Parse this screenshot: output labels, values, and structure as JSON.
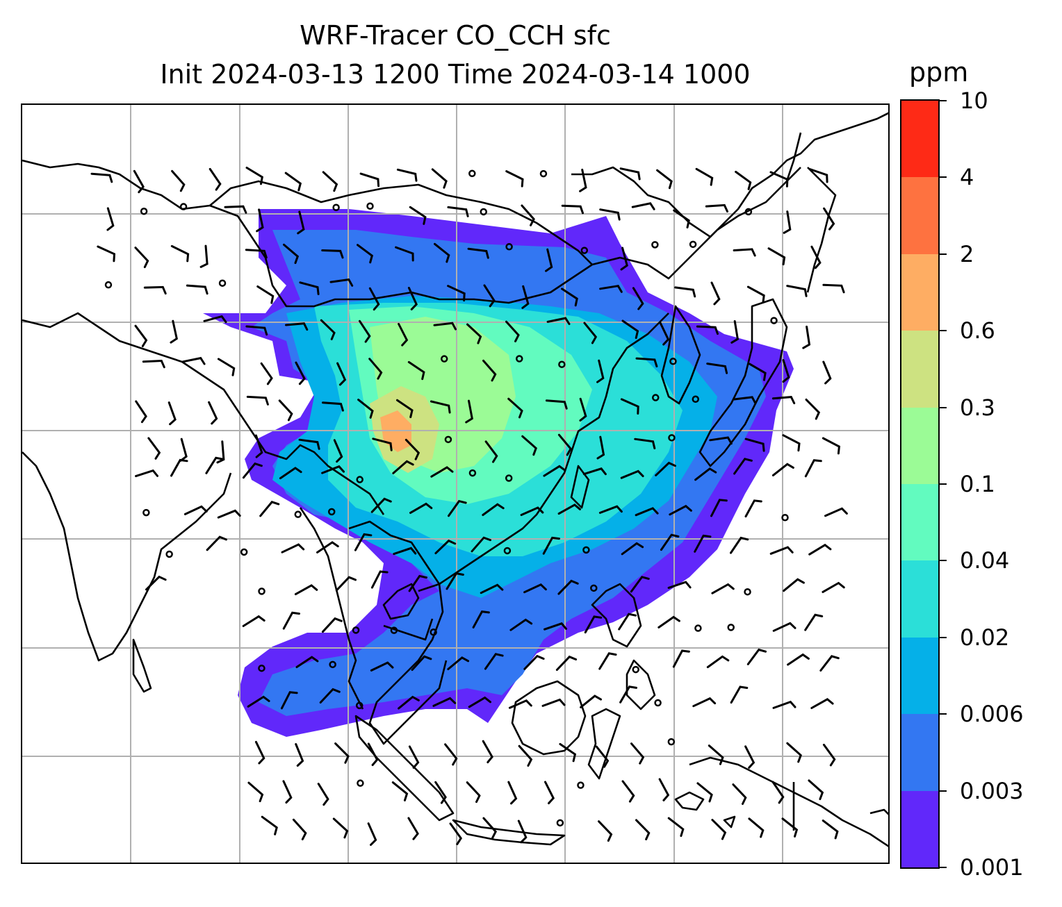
{
  "title": {
    "line1": "WRF-Tracer CO_CCH sfc",
    "line2": "Init 2024-03-13 1200 Time 2024-03-14 1000"
  },
  "colorbar": {
    "units": "ppm",
    "levels": [
      "0.001",
      "0.003",
      "0.006",
      "0.02",
      "0.04",
      "0.1",
      "0.3",
      "0.6",
      "2",
      "4",
      "10"
    ],
    "colors": [
      "#6128fa",
      "#3377f2",
      "#05b0e8",
      "#2bdfd8",
      "#62fbbf",
      "#9bfb96",
      "#cde281",
      "#fead63",
      "#fe7240",
      "#fe2a16"
    ]
  },
  "map": {
    "gridlines": true,
    "coastline_color": "#000000",
    "grid_color": "#b0b0b0"
  },
  "chart_data": {
    "type": "heatmap",
    "title": "WRF-Tracer CO_CCH sfc\nInit 2024-03-13 1200 Time 2024-03-14 1000",
    "units": "ppm",
    "levels": [
      0.001,
      0.003,
      0.006,
      0.02,
      0.04,
      0.1,
      0.3,
      0.6,
      2,
      4,
      10
    ],
    "overlays": [
      "wind barbs",
      "coastlines",
      "country borders"
    ]
  }
}
